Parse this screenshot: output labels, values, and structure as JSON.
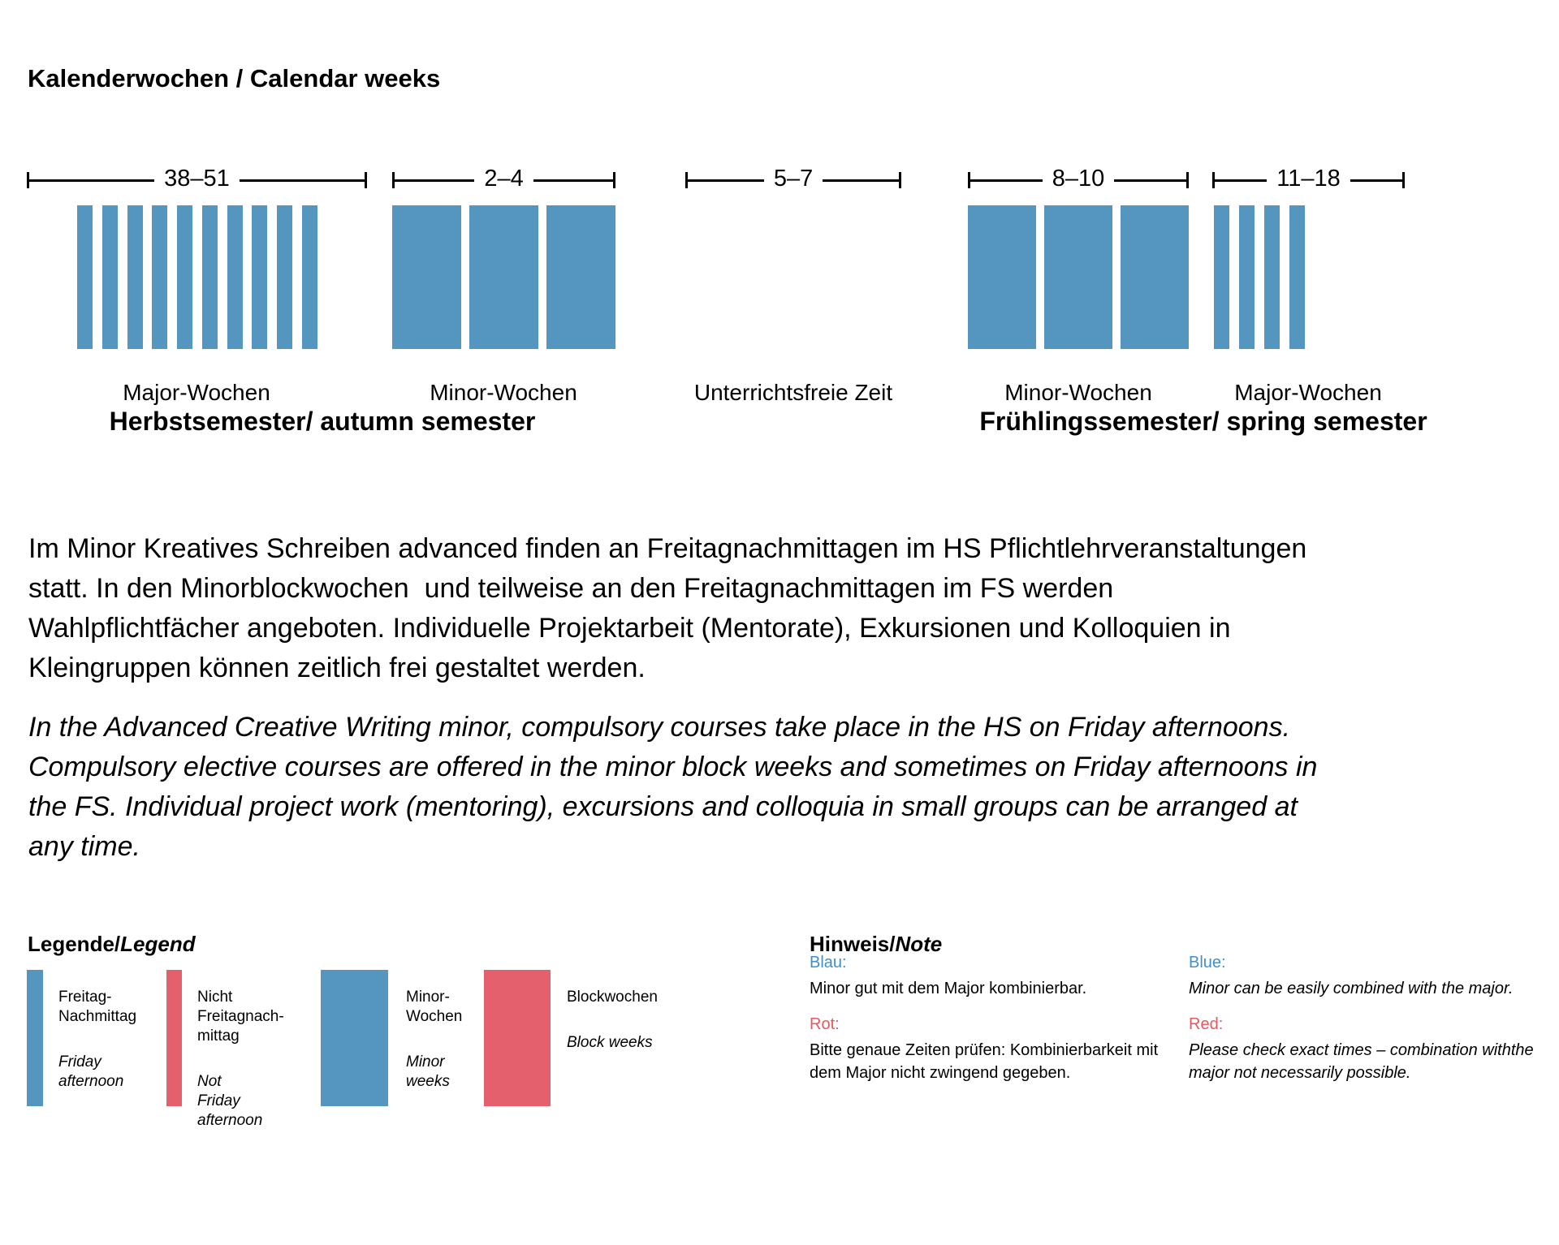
{
  "page": {
    "title": "Kalenderwochen / Calendar weeks"
  },
  "chart_data": {
    "type": "bar",
    "title": "Kalenderwochen / Calendar weeks",
    "description": "Timeline of calendar weeks: blue bars mark teaching weeks; thin bars are major weeks (Friday afternoons), wide bars are minor block weeks",
    "bar_color": "#5596C1",
    "groups": [
      {
        "weeks_range": "38–51",
        "label": "Major-Wochen",
        "bar_style": "thin",
        "bar_count": 10,
        "semester": "Herbstsemester/ autumn semester"
      },
      {
        "weeks_range": "2–4",
        "label": "Minor-Wochen",
        "bar_style": "wide",
        "bar_count": 3,
        "semester": "Herbstsemester/ autumn semester"
      },
      {
        "weeks_range": "5–7",
        "label": "Unterrichtsfreie Zeit",
        "bar_style": "none",
        "bar_count": 0,
        "semester": ""
      },
      {
        "weeks_range": "8–10",
        "label": "Minor-Wochen",
        "bar_style": "wide",
        "bar_count": 3,
        "semester": "Frühlingssemester/ spring semester"
      },
      {
        "weeks_range": "11–18",
        "label": "Major-Wochen",
        "bar_style": "thin",
        "bar_count": 4,
        "semester": "Frühlingssemester/ spring semester"
      }
    ],
    "semester_titles": [
      "Herbstsemester/ autumn semester",
      "Frühlingssemester/ spring semester"
    ]
  },
  "paragraphs": {
    "german": "Im Minor Kreatives Schreiben advanced finden an Freitagnachmittagen im HS Pflichtlehrveranstaltungen\nstatt. In den Minorblockwochen  und teilweise an den Freitagnachmittagen im FS werden\nWahlpflichtfächer angeboten. Individuelle Projektarbeit (Mentorate), Exkursionen und Kolloquien in\nKleingruppen können zeitlich frei gestaltet werden.",
    "english": "In the Advanced Creative Writing minor, compulsory courses take place in the HS on Friday afternoons.\nCompulsory elective courses are offered in the minor block weeks and sometimes on Friday afternoons in\nthe FS. Individual project work (mentoring), excursions and colloquia in small groups can be arranged at\nany time."
  },
  "legend": {
    "heading_roman": "Legende/",
    "heading_italic": "Legend",
    "items": [
      {
        "swatch": "blue-thin",
        "de": "Freitag-\nNachmittag",
        "en": "Friday\nafternoon"
      },
      {
        "swatch": "red-thin",
        "de": "Nicht\nFreitagnach-\nmittag",
        "en": "Not\nFriday\nafternoon"
      },
      {
        "swatch": "blue-wide",
        "de": "Minor-\nWochen",
        "en": "Minor\nweeks"
      },
      {
        "swatch": "red-wide",
        "de": "Blockwochen",
        "en": "Block weeks"
      }
    ]
  },
  "note": {
    "heading_roman": "Hinweis/",
    "heading_italic": "Note",
    "de": {
      "blue_label": "Blau:",
      "blue_text": "Minor gut mit dem Major kombinierbar.",
      "red_label": "Rot:",
      "red_text": "Bitte genaue Zeiten prüfen: Kombinierbarkeit mit\ndem Major nicht zwingend gegeben."
    },
    "en": {
      "blue_label": "Blue:",
      "blue_text": "Minor can be easily combined with the major.",
      "red_label": "Red:",
      "red_text": "Please check exact times – combination withthe\nmajor not necessarily possible."
    }
  },
  "colors": {
    "bar_blue": "#5596C1",
    "bar_red": "#E5606D",
    "note_blue": "#3F90CC",
    "note_red": "#E9575F"
  }
}
